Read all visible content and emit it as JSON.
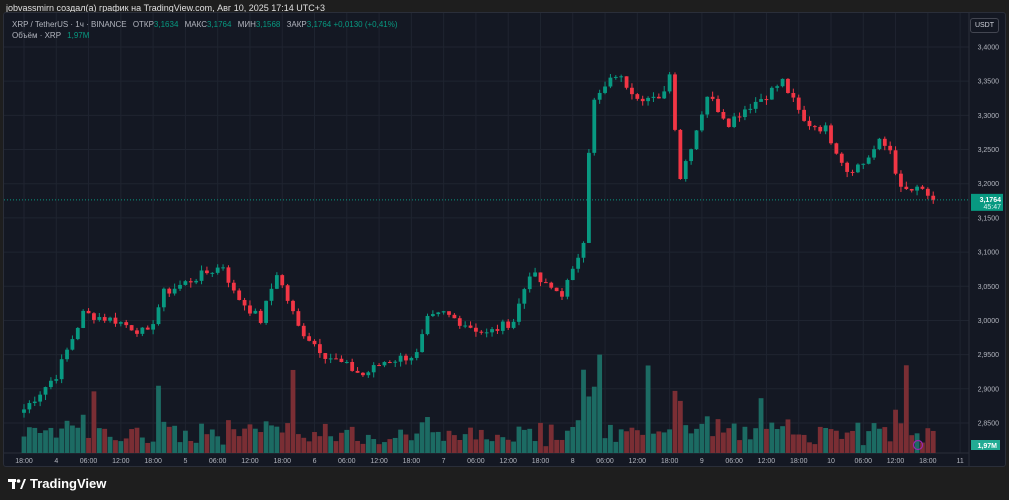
{
  "author_line": "jobvassmirn создал(а) график на TradingView.com, Авг 10, 2025 17:14 UTC+3",
  "legend": {
    "symbol": "XRP / TetherUS · 1ч · BINANCE",
    "open_label": "ОТКР",
    "open": "3,1634",
    "high_label": "МАКС",
    "high": "3,1764",
    "low_label": "МИН",
    "low": "3,1568",
    "close_label": "ЗАКР",
    "close": "3,1764",
    "change": "+0,0130 (+0,41%)",
    "volume_label": "Объём · XRP",
    "volume": "1,97M"
  },
  "currency_button": "USDT",
  "price_label": {
    "price": "3,1764",
    "countdown": "45:47"
  },
  "volume_label": "1,97M",
  "footer": "TradingView",
  "colors": {
    "up": "#089981",
    "down": "#f23645",
    "vol_up": "#1c6b63",
    "vol_down": "#7a2e34"
  },
  "chart_data": {
    "type": "candlestick",
    "price_ticks": [
      "3,4000",
      "3,3500",
      "3,3000",
      "3,2500",
      "3,2000",
      "3,1500",
      "3,1000",
      "3,0500",
      "3,0000",
      "2,9500",
      "2,9000",
      "2,8500"
    ],
    "price_tick_values": [
      3.4,
      3.35,
      3.3,
      3.25,
      3.2,
      3.15,
      3.1,
      3.05,
      3.0,
      2.95,
      2.9,
      2.85
    ],
    "ylim": [
      2.85,
      3.4
    ],
    "time_ticks": [
      "18:00",
      "4",
      "06:00",
      "12:00",
      "18:00",
      "5",
      "06:00",
      "12:00",
      "18:00",
      "6",
      "06:00",
      "12:00",
      "18:00",
      "7",
      "06:00",
      "12:00",
      "18:00",
      "8",
      "06:00",
      "12:00",
      "18:00",
      "9",
      "06:00",
      "12:00",
      "18:00",
      "10",
      "06:00",
      "12:00",
      "18:00",
      "11"
    ],
    "time_tick_hours": [
      0,
      6,
      12,
      18,
      24,
      30,
      36,
      42,
      48,
      54,
      60,
      66,
      72,
      78,
      84,
      90,
      96,
      102,
      108,
      114,
      120,
      126,
      132,
      138,
      144,
      150,
      156,
      162,
      168,
      174
    ],
    "close_path_hours": [
      0,
      6,
      11,
      17,
      23,
      26,
      34,
      37,
      39,
      44,
      47,
      51,
      56,
      63,
      67,
      73,
      75,
      78,
      86,
      91,
      94,
      97,
      100,
      102,
      104,
      105,
      106,
      110,
      114,
      118,
      120,
      122,
      125,
      127,
      131,
      134,
      138,
      141,
      143,
      145,
      149,
      153,
      156,
      159,
      161,
      163,
      167,
      169
    ],
    "close_path_prices": [
      2.87,
      2.92,
      3.01,
      3.0,
      2.98,
      3.04,
      3.07,
      3.08,
      3.04,
      3.0,
      3.07,
      2.99,
      2.95,
      2.92,
      2.94,
      2.95,
      3.0,
      3.01,
      2.98,
      3.0,
      3.07,
      3.05,
      3.04,
      3.07,
      3.12,
      3.25,
      3.32,
      3.36,
      3.33,
      3.32,
      3.36,
      3.21,
      3.28,
      3.33,
      3.29,
      3.31,
      3.33,
      3.35,
      3.32,
      3.29,
      3.28,
      3.22,
      3.23,
      3.26,
      3.25,
      3.19,
      3.19,
      3.176
    ],
    "current_price": 3.1764,
    "volume_spikes_hours": [
      13,
      25,
      50,
      104,
      105,
      107,
      116,
      121,
      137,
      164
    ]
  }
}
